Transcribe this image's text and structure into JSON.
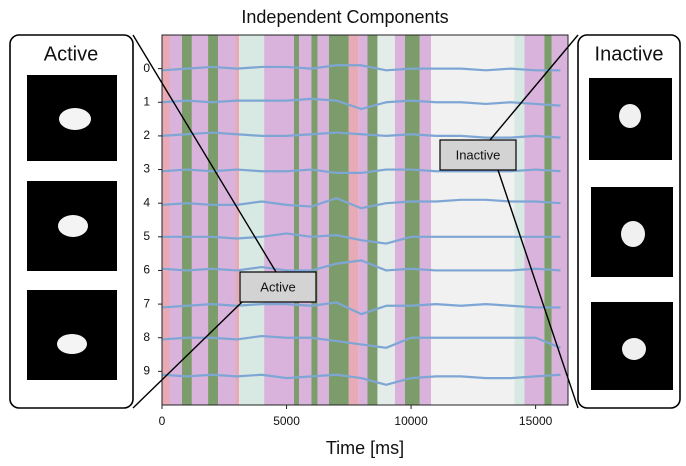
{
  "chart_data": {
    "type": "line",
    "title": "Independent Components",
    "xlabel": "Time [ms]",
    "x": [
      0,
      1000,
      2000,
      3000,
      4000,
      5000,
      6000,
      7000,
      8000,
      9000,
      10000,
      11000,
      12000,
      13000,
      14000,
      15000,
      16000
    ],
    "line_color": "#7ea6d4",
    "series": [
      {
        "values": [
          0.05,
          0.0,
          -0.05,
          0.0,
          -0.05,
          -0.05,
          0.0,
          -0.1,
          -0.1,
          0.05,
          0.0,
          0.0,
          0.0,
          0.05,
          0.0,
          0.05,
          0.05
        ]
      },
      {
        "values": [
          1.0,
          0.95,
          1.0,
          0.95,
          0.95,
          0.95,
          0.9,
          0.95,
          1.2,
          1.0,
          0.95,
          1.0,
          1.0,
          1.05,
          1.0,
          1.05,
          1.1
        ]
      },
      {
        "values": [
          2.0,
          1.95,
          1.9,
          1.95,
          2.0,
          2.0,
          1.95,
          1.9,
          1.95,
          2.0,
          1.95,
          2.0,
          2.0,
          2.05,
          2.05,
          2.0,
          2.05
        ]
      },
      {
        "values": [
          3.05,
          3.0,
          3.05,
          3.0,
          3.05,
          3.05,
          3.0,
          3.1,
          3.1,
          3.0,
          3.0,
          3.05,
          3.05,
          3.05,
          3.05,
          3.0,
          3.05
        ]
      },
      {
        "values": [
          4.05,
          4.0,
          4.05,
          4.05,
          3.95,
          4.05,
          4.1,
          3.85,
          4.15,
          4.0,
          3.95,
          3.95,
          3.9,
          3.9,
          3.95,
          3.95,
          4.0
        ]
      },
      {
        "values": [
          5.0,
          5.0,
          5.0,
          5.05,
          5.0,
          4.9,
          5.0,
          4.95,
          5.1,
          5.2,
          5.0,
          5.0,
          5.0,
          5.0,
          5.0,
          5.0,
          5.0
        ]
      },
      {
        "values": [
          5.95,
          6.0,
          5.95,
          6.0,
          5.9,
          6.0,
          6.0,
          5.8,
          5.7,
          6.0,
          5.95,
          6.0,
          6.0,
          6.0,
          6.0,
          5.95,
          6.0
        ]
      },
      {
        "values": [
          7.1,
          7.05,
          7.0,
          7.05,
          7.0,
          7.0,
          7.05,
          6.95,
          7.3,
          7.05,
          7.05,
          7.0,
          7.05,
          7.0,
          7.05,
          7.1,
          7.1
        ]
      },
      {
        "values": [
          8.05,
          8.0,
          8.0,
          8.05,
          7.95,
          8.0,
          8.0,
          8.1,
          8.2,
          8.3,
          8.0,
          8.0,
          8.0,
          8.0,
          8.0,
          8.0,
          8.3
        ]
      },
      {
        "values": [
          9.1,
          9.15,
          9.1,
          9.15,
          9.1,
          9.2,
          9.15,
          9.1,
          9.2,
          9.4,
          9.2,
          9.15,
          9.15,
          9.2,
          9.2,
          9.15,
          9.1
        ]
      }
    ],
    "bands": [
      {
        "start": 0,
        "end": 320,
        "color": "#e7aab6"
      },
      {
        "start": 320,
        "end": 800,
        "color": "#d9b3dc"
      },
      {
        "start": 800,
        "end": 1200,
        "color": "#7d9c6c"
      },
      {
        "start": 1200,
        "end": 1850,
        "color": "#d9b3dc"
      },
      {
        "start": 1850,
        "end": 2250,
        "color": "#7d9c6c"
      },
      {
        "start": 2250,
        "end": 2950,
        "color": "#d9b3dc"
      },
      {
        "start": 2950,
        "end": 3100,
        "color": "#e7aab6"
      },
      {
        "start": 3100,
        "end": 4100,
        "color": "#d8e8e3"
      },
      {
        "start": 4100,
        "end": 5300,
        "color": "#d9b3dc"
      },
      {
        "start": 5300,
        "end": 5500,
        "color": "#7d9c6c"
      },
      {
        "start": 5500,
        "end": 6000,
        "color": "#d9b3dc"
      },
      {
        "start": 6000,
        "end": 6250,
        "color": "#7d9c6c"
      },
      {
        "start": 6250,
        "end": 6700,
        "color": "#d9b3dc"
      },
      {
        "start": 6700,
        "end": 7500,
        "color": "#7d9c6c"
      },
      {
        "start": 7500,
        "end": 7900,
        "color": "#e7aab6"
      },
      {
        "start": 7900,
        "end": 8250,
        "color": "#d9b3dc"
      },
      {
        "start": 8250,
        "end": 8650,
        "color": "#7d9c6c"
      },
      {
        "start": 8650,
        "end": 9350,
        "color": "#e4ecea"
      },
      {
        "start": 9350,
        "end": 9750,
        "color": "#d9b3dc"
      },
      {
        "start": 9750,
        "end": 10350,
        "color": "#7d9c6c"
      },
      {
        "start": 10350,
        "end": 10800,
        "color": "#d9b3dc"
      },
      {
        "start": 10800,
        "end": 14150,
        "color": "#f1f1f1"
      },
      {
        "start": 14150,
        "end": 14550,
        "color": "#d8e8e3"
      },
      {
        "start": 14550,
        "end": 15350,
        "color": "#d9b3dc"
      },
      {
        "start": 15350,
        "end": 15650,
        "color": "#7d9c6c"
      },
      {
        "start": 15650,
        "end": 16300,
        "color": "#d9b3dc"
      }
    ],
    "xlim": [
      0,
      16300
    ],
    "xticks": [
      0,
      5000,
      10000,
      15000
    ],
    "ylim": [
      10,
      -1
    ],
    "yticks": [
      0,
      1,
      2,
      3,
      4,
      5,
      6,
      7,
      8,
      9
    ]
  },
  "panels": {
    "left": {
      "title": "Active"
    },
    "right": {
      "title": "Inactive"
    }
  },
  "callouts": [
    {
      "label": "Active"
    },
    {
      "label": "Inactive"
    }
  ]
}
